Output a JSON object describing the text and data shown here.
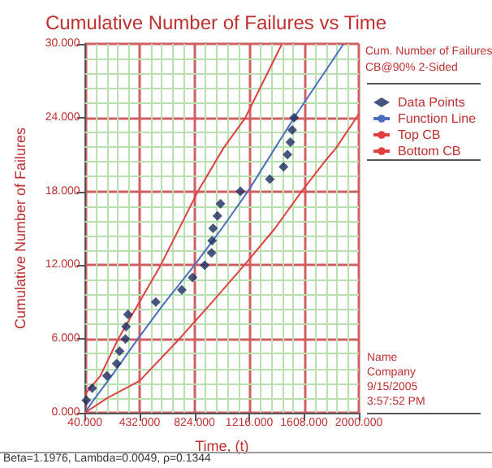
{
  "chart_data": {
    "type": "line",
    "title": "Cumulative Number of Failures vs Time",
    "xlabel": "Time, (t)",
    "ylabel": "Cumulative Number of Failures",
    "legend_title": "Cum. Number of Failures\nCB@90% 2-Sided",
    "legend": "right",
    "grid": true,
    "xlim": [
      40,
      2000
    ],
    "xticks": [
      {
        "value": 40,
        "label": "40.000"
      },
      {
        "value": 118.4,
        "label": null
      },
      {
        "value": 196.8,
        "label": null
      },
      {
        "value": 275.2,
        "label": null
      },
      {
        "value": 353.6,
        "label": null
      },
      {
        "value": 432,
        "label": "432.000"
      },
      {
        "value": 510.4,
        "label": null
      },
      {
        "value": 588.8,
        "label": null
      },
      {
        "value": 667.2,
        "label": null
      },
      {
        "value": 745.6,
        "label": null
      },
      {
        "value": 824,
        "label": "824.000"
      },
      {
        "value": 902.4,
        "label": null
      },
      {
        "value": 980.8,
        "label": null
      },
      {
        "value": 1059.2,
        "label": null
      },
      {
        "value": 1137.6,
        "label": null
      },
      {
        "value": 1216,
        "label": "1216.000"
      },
      {
        "value": 1294.4,
        "label": null
      },
      {
        "value": 1372.8,
        "label": null
      },
      {
        "value": 1451.2,
        "label": null
      },
      {
        "value": 1529.6,
        "label": null
      },
      {
        "value": 1608,
        "label": "1608.000"
      },
      {
        "value": 1686.4,
        "label": null
      },
      {
        "value": 1764.8,
        "label": null
      },
      {
        "value": 1843.2,
        "label": null
      },
      {
        "value": 1921.6,
        "label": null
      },
      {
        "value": 2000,
        "label": "2000.000"
      }
    ],
    "ylim": [
      0,
      30
    ],
    "yticks": [
      {
        "value": 0,
        "label": "0.000"
      },
      {
        "value": 1.2,
        "label": null
      },
      {
        "value": 2.4,
        "label": null
      },
      {
        "value": 3.6,
        "label": null
      },
      {
        "value": 4.8,
        "label": null
      },
      {
        "value": 6,
        "label": "6.000"
      },
      {
        "value": 7.2,
        "label": null
      },
      {
        "value": 8.4,
        "label": null
      },
      {
        "value": 9.6,
        "label": null
      },
      {
        "value": 10.8,
        "label": null
      },
      {
        "value": 12,
        "label": "12.000"
      },
      {
        "value": 13.2,
        "label": null
      },
      {
        "value": 14.4,
        "label": null
      },
      {
        "value": 15.6,
        "label": null
      },
      {
        "value": 16.8,
        "label": null
      },
      {
        "value": 18,
        "label": "18.000"
      },
      {
        "value": 19.2,
        "label": null
      },
      {
        "value": 20.4,
        "label": null
      },
      {
        "value": 21.6,
        "label": null
      },
      {
        "value": 22.8,
        "label": null
      },
      {
        "value": 24,
        "label": "24.000"
      },
      {
        "value": 25.2,
        "label": null
      },
      {
        "value": 26.4,
        "label": null
      },
      {
        "value": 27.6,
        "label": null
      },
      {
        "value": 28.8,
        "label": null
      },
      {
        "value": 30,
        "label": "30.000"
      }
    ],
    "series": [
      {
        "name": "Data Points",
        "type": "scatter",
        "marker": "diamond",
        "color": "#1a2a5e",
        "x": [
          50,
          92,
          197,
          267,
          288,
          330,
          334,
          348,
          547,
          733,
          810,
          897,
          946,
          950,
          957,
          988,
          1010,
          1153,
          1363,
          1461,
          1489,
          1510,
          1523,
          1537
        ],
        "values": [
          1,
          2,
          3,
          4,
          5,
          6,
          7,
          8,
          9,
          10,
          11,
          12,
          13,
          14,
          15,
          16,
          17,
          18,
          19,
          20,
          21,
          22,
          23,
          24
        ]
      },
      {
        "name": "Function Line",
        "marker": "none",
        "color": "#4a6fc0",
        "x": [
          40,
          100,
          250,
          418,
          600,
          824,
          1020,
          1206,
          1537,
          1891
        ],
        "values": [
          0,
          1,
          3.3,
          6,
          8.8,
          12,
          15,
          18,
          24,
          30
        ]
      },
      {
        "name": "Top CB",
        "marker": "none",
        "color": "#e04040",
        "x": [
          40,
          150,
          278,
          430,
          582,
          848,
          1030,
          1188,
          1450
        ],
        "values": [
          1.5,
          3,
          6,
          9,
          12,
          18,
          21.5,
          24,
          30
        ]
      },
      {
        "name": "Bottom CB",
        "marker": "none",
        "color": "#e04040",
        "x": [
          40,
          200,
          432,
          715,
          950,
          1180,
          1400,
          1590,
          1760,
          1835,
          2000
        ],
        "values": [
          0,
          1.2,
          2.6,
          6,
          9,
          12,
          15,
          18,
          20.5,
          21.5,
          24.3
        ]
      }
    ],
    "annotations": [
      "Name",
      "Company",
      "9/15/2005",
      "3:57:52 PM",
      "Beta=1.1976, Lambda=0.0049, ρ=0.1344"
    ]
  }
}
